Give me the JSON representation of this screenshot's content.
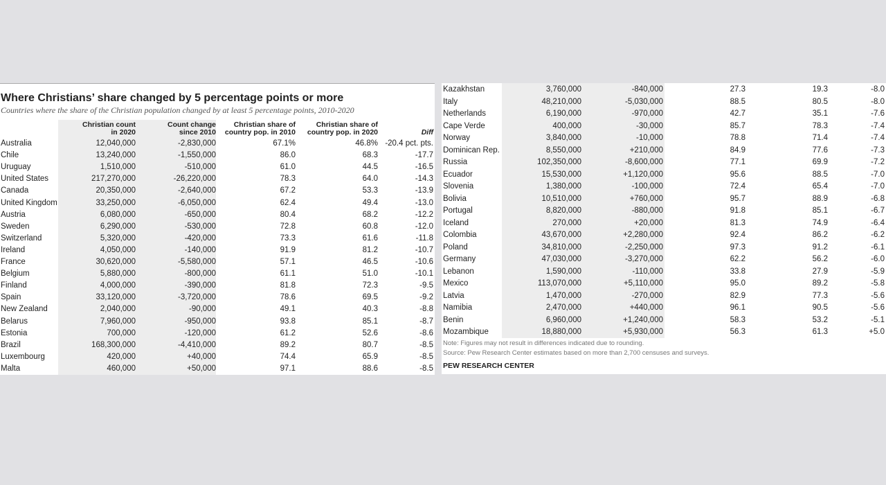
{
  "title": "Where Christians’ share changed by 5 percentage points or more",
  "subtitle": "Countries where the share of the Christian population changed by at least 5 percentage points, 2010-2020",
  "headers": [
    [
      "Christian count",
      "in 2020"
    ],
    [
      "Count change",
      "since 2010"
    ],
    [
      "Christian share of",
      "country pop. in 2010"
    ],
    [
      "Christian share of",
      "country pop. in 2020"
    ],
    [
      "Diff"
    ]
  ],
  "left_rows": [
    [
      "Australia",
      "12,040,000",
      "-2,830,000",
      "67.1%",
      "46.8%",
      "-20.4 pct. pts."
    ],
    [
      "Chile",
      "13,240,000",
      "-1,550,000",
      "86.0",
      "68.3",
      "-17.7"
    ],
    [
      "Uruguay",
      "1,510,000",
      "-510,000",
      "61.0",
      "44.5",
      "-16.5"
    ],
    [
      "United States",
      "217,270,000",
      "-26,220,000",
      "78.3",
      "64.0",
      "-14.3"
    ],
    [
      "Canada",
      "20,350,000",
      "-2,640,000",
      "67.2",
      "53.3",
      "-13.9"
    ],
    [
      "United Kingdom",
      "33,250,000",
      "-6,050,000",
      "62.4",
      "49.4",
      "-13.0"
    ],
    [
      "Austria",
      "6,080,000",
      "-650,000",
      "80.4",
      "68.2",
      "-12.2"
    ],
    [
      "Sweden",
      "6,290,000",
      "-530,000",
      "72.8",
      "60.8",
      "-12.0"
    ],
    [
      "Switzerland",
      "5,320,000",
      "-420,000",
      "73.3",
      "61.6",
      "-11.8"
    ],
    [
      "Ireland",
      "4,050,000",
      "-140,000",
      "91.9",
      "81.2",
      "-10.7"
    ],
    [
      "France",
      "30,620,000",
      "-5,580,000",
      "57.1",
      "46.5",
      "-10.6"
    ],
    [
      "Belgium",
      "5,880,000",
      "-800,000",
      "61.1",
      "51.0",
      "-10.1"
    ],
    [
      "Finland",
      "4,000,000",
      "-390,000",
      "81.8",
      "72.3",
      "-9.5"
    ],
    [
      "Spain",
      "33,120,000",
      "-3,720,000",
      "78.6",
      "69.5",
      "-9.2"
    ],
    [
      "New Zealand",
      "2,040,000",
      "-90,000",
      "49.1",
      "40.3",
      "-8.8"
    ],
    [
      "Belarus",
      "7,960,000",
      "-950,000",
      "93.8",
      "85.1",
      "-8.7"
    ],
    [
      "Estonia",
      "700,000",
      "-120,000",
      "61.2",
      "52.6",
      "-8.6"
    ],
    [
      "Brazil",
      "168,300,000",
      "-4,410,000",
      "89.2",
      "80.7",
      "-8.5"
    ],
    [
      "Luxembourg",
      "420,000",
      "+40,000",
      "74.4",
      "65.9",
      "-8.5"
    ],
    [
      "Malta",
      "460,000",
      "+50,000",
      "97.1",
      "88.6",
      "-8.5"
    ]
  ],
  "right_rows": [
    [
      "Kazakhstan",
      "3,760,000",
      "-840,000",
      "27.3",
      "19.3",
      "-8.0"
    ],
    [
      "Italy",
      "48,210,000",
      "-5,030,000",
      "88.5",
      "80.5",
      "-8.0"
    ],
    [
      "Netherlands",
      "6,190,000",
      "-970,000",
      "42.7",
      "35.1",
      "-7.6"
    ],
    [
      "Cape Verde",
      "400,000",
      "-30,000",
      "85.7",
      "78.3",
      "-7.4"
    ],
    [
      "Norway",
      "3,840,000",
      "-10,000",
      "78.8",
      "71.4",
      "-7.4"
    ],
    [
      "Dominican Rep.",
      "8,550,000",
      "+210,000",
      "84.9",
      "77.6",
      "-7.3"
    ],
    [
      "Russia",
      "102,350,000",
      "-8,600,000",
      "77.1",
      "69.9",
      "-7.2"
    ],
    [
      "Ecuador",
      "15,530,000",
      "+1,120,000",
      "95.6",
      "88.5",
      "-7.0"
    ],
    [
      "Slovenia",
      "1,380,000",
      "-100,000",
      "72.4",
      "65.4",
      "-7.0"
    ],
    [
      "Bolivia",
      "10,510,000",
      "+760,000",
      "95.7",
      "88.9",
      "-6.8"
    ],
    [
      "Portugal",
      "8,820,000",
      "-880,000",
      "91.8",
      "85.1",
      "-6.7"
    ],
    [
      "Iceland",
      "270,000",
      "+20,000",
      "81.3",
      "74.9",
      "-6.4"
    ],
    [
      "Colombia",
      "43,670,000",
      "+2,280,000",
      "92.4",
      "86.2",
      "-6.2"
    ],
    [
      "Poland",
      "34,810,000",
      "-2,250,000",
      "97.3",
      "91.2",
      "-6.1"
    ],
    [
      "Germany",
      "47,030,000",
      "-3,270,000",
      "62.2",
      "56.2",
      "-6.0"
    ],
    [
      "Lebanon",
      "1,590,000",
      "-110,000",
      "33.8",
      "27.9",
      "-5.9"
    ],
    [
      "Mexico",
      "113,070,000",
      "+5,110,000",
      "95.0",
      "89.2",
      "-5.8"
    ],
    [
      "Latvia",
      "1,470,000",
      "-270,000",
      "82.9",
      "77.3",
      "-5.6"
    ],
    [
      "Namibia",
      "2,470,000",
      "+440,000",
      "96.1",
      "90.5",
      "-5.6"
    ],
    [
      "Benin",
      "6,960,000",
      "+1,240,000",
      "58.3",
      "53.2",
      "-5.1"
    ],
    [
      "Mozambique",
      "18,880,000",
      "+5,930,000",
      "56.3",
      "61.3",
      "+5.0"
    ]
  ],
  "note": "Note: Figures may not result in differences indicated due to rounding.",
  "source": "Source: Pew Research Center estimates based on more than 2,700 censuses and surveys.",
  "footer": "PEW RESEARCH CENTER"
}
